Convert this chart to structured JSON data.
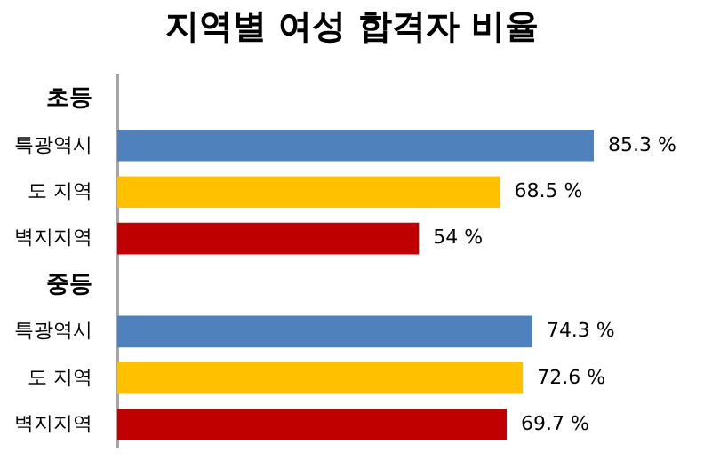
{
  "chart_data": {
    "type": "bar",
    "orientation": "horizontal",
    "title": "지역별 여성 합격자 비율",
    "categories": [
      "초등",
      "특광역시",
      "도 지역",
      "벽지지역",
      "중등",
      "특광역시",
      "도 지역",
      "벽지지역"
    ],
    "values": [
      null,
      85.3,
      68.5,
      54,
      null,
      74.3,
      72.6,
      69.7
    ],
    "colors": [
      "#4f81bd",
      "#4f81bd",
      "#ffc000",
      "#c00000",
      "#4f81bd",
      "#4f81bd",
      "#ffc000",
      "#c00000"
    ],
    "value_labels": [
      null,
      "85.3 %",
      "68.5 %",
      "54 %",
      null,
      "74.3 %",
      "72.6 %",
      "69.7 %"
    ]
  }
}
